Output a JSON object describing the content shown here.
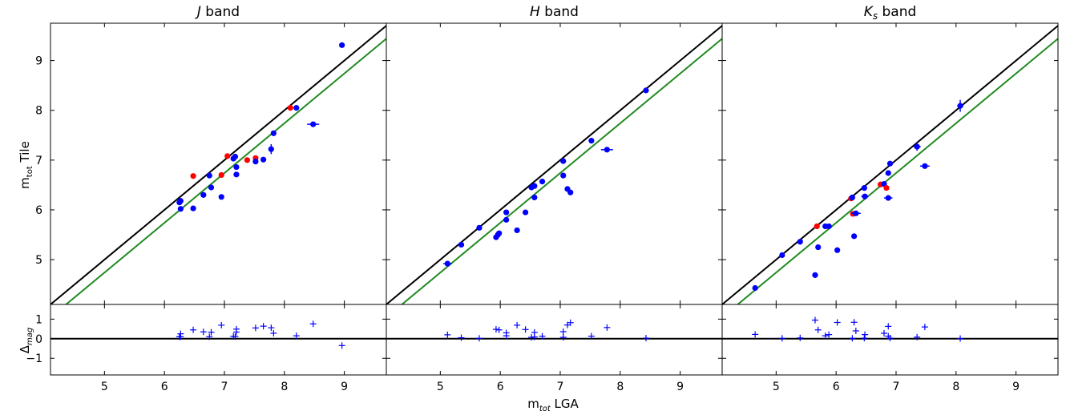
{
  "figure": {
    "ylabel": "m",
    "ylabel_sub": "tot",
    "ylabel_tail": " Tile",
    "xlabel": "m",
    "xlabel_sub": "tot",
    "xlabel_tail": " LGA",
    "resid_ylabel": "Δ",
    "resid_ylabel_sub": "mag"
  },
  "colors": {
    "identity_line": "#000000",
    "offset_line": "#228B22",
    "points_blue": "#0000ff",
    "points_red": "#ff0000"
  },
  "chart_data": [
    {
      "type": "scatter",
      "title_prefix": "",
      "title_symbol": "J",
      "title_sub": "",
      "title_suffix": " band",
      "xlim": [
        4.1,
        9.7
      ],
      "ylim": [
        4.1,
        9.75
      ],
      "resid_ylim": [
        -1.85,
        1.75
      ],
      "x_ticks": [
        5,
        6,
        7,
        8,
        9
      ],
      "y_ticks": [
        5,
        6,
        7,
        8,
        9
      ],
      "resid_ticks": [
        -1,
        0,
        1
      ],
      "lines": [
        {
          "name": "identity",
          "x": [
            4.1,
            9.7
          ],
          "y": [
            4.1,
            9.7
          ]
        },
        {
          "name": "offset",
          "x": [
            4.1,
            9.7
          ],
          "y": [
            3.84,
            9.44
          ]
        }
      ],
      "points": [
        {
          "x": 6.25,
          "y": 6.15,
          "c": "blue"
        },
        {
          "x": 6.27,
          "y": 6.18,
          "c": "blue"
        },
        {
          "x": 6.27,
          "y": 6.02,
          "c": "blue"
        },
        {
          "x": 6.48,
          "y": 6.03,
          "c": "blue"
        },
        {
          "x": 6.48,
          "y": 6.68,
          "c": "red"
        },
        {
          "x": 6.65,
          "y": 6.3,
          "c": "blue"
        },
        {
          "x": 6.75,
          "y": 6.69,
          "c": "blue"
        },
        {
          "x": 6.78,
          "y": 6.45,
          "c": "blue"
        },
        {
          "x": 6.95,
          "y": 6.26,
          "c": "blue"
        },
        {
          "x": 6.95,
          "y": 6.7,
          "c": "red"
        },
        {
          "x": 7.05,
          "y": 7.08,
          "c": "red"
        },
        {
          "x": 7.15,
          "y": 7.03,
          "c": "blue"
        },
        {
          "x": 7.18,
          "y": 7.07,
          "c": "blue"
        },
        {
          "x": 7.2,
          "y": 6.86,
          "c": "blue"
        },
        {
          "x": 7.2,
          "y": 6.71,
          "c": "blue"
        },
        {
          "x": 7.38,
          "y": 7.0,
          "c": "red"
        },
        {
          "x": 7.52,
          "y": 7.04,
          "c": "red"
        },
        {
          "x": 7.52,
          "y": 6.97,
          "c": "blue"
        },
        {
          "x": 7.65,
          "y": 7.01,
          "c": "blue"
        },
        {
          "x": 7.78,
          "y": 7.22,
          "c": "blue",
          "yerr": 0.1
        },
        {
          "x": 7.82,
          "y": 7.54,
          "c": "blue"
        },
        {
          "x": 8.1,
          "y": 8.05,
          "c": "red"
        },
        {
          "x": 8.2,
          "y": 8.05,
          "c": "blue"
        },
        {
          "x": 8.48,
          "y": 7.72,
          "c": "blue",
          "xerr": 0.1
        },
        {
          "x": 8.96,
          "y": 9.31,
          "c": "blue"
        }
      ],
      "residuals": [
        {
          "x": 6.25,
          "y": 0.1
        },
        {
          "x": 6.27,
          "y": 0.1
        },
        {
          "x": 6.27,
          "y": 0.25
        },
        {
          "x": 6.48,
          "y": 0.45
        },
        {
          "x": 6.65,
          "y": 0.35
        },
        {
          "x": 6.75,
          "y": 0.1
        },
        {
          "x": 6.78,
          "y": 0.33
        },
        {
          "x": 6.95,
          "y": 0.69
        },
        {
          "x": 7.15,
          "y": 0.12
        },
        {
          "x": 7.18,
          "y": 0.11
        },
        {
          "x": 7.2,
          "y": 0.34
        },
        {
          "x": 7.2,
          "y": 0.49
        },
        {
          "x": 7.52,
          "y": 0.55
        },
        {
          "x": 7.65,
          "y": 0.64
        },
        {
          "x": 7.78,
          "y": 0.56
        },
        {
          "x": 7.82,
          "y": 0.28
        },
        {
          "x": 8.2,
          "y": 0.15
        },
        {
          "x": 8.48,
          "y": 0.76
        },
        {
          "x": 8.96,
          "y": -0.35
        }
      ]
    },
    {
      "type": "scatter",
      "title_prefix": "",
      "title_symbol": "H",
      "title_sub": "",
      "title_suffix": " band",
      "xlim": [
        4.1,
        9.7
      ],
      "ylim": [
        4.1,
        9.75
      ],
      "resid_ylim": [
        -1.85,
        1.75
      ],
      "x_ticks": [
        5,
        6,
        7,
        8,
        9
      ],
      "y_ticks": [
        5,
        6,
        7,
        8,
        9
      ],
      "resid_ticks": [
        -1,
        0,
        1
      ],
      "lines": [
        {
          "name": "identity",
          "x": [
            4.1,
            9.7
          ],
          "y": [
            4.1,
            9.7
          ]
        },
        {
          "name": "offset",
          "x": [
            4.1,
            9.7
          ],
          "y": [
            3.84,
            9.44
          ]
        }
      ],
      "points": [
        {
          "x": 5.12,
          "y": 4.92,
          "c": "blue",
          "xerr": 0.07
        },
        {
          "x": 5.35,
          "y": 5.3,
          "c": "blue"
        },
        {
          "x": 5.65,
          "y": 5.64,
          "c": "blue"
        },
        {
          "x": 5.93,
          "y": 5.45,
          "c": "blue"
        },
        {
          "x": 5.96,
          "y": 5.5,
          "c": "blue"
        },
        {
          "x": 5.98,
          "y": 5.53,
          "c": "blue"
        },
        {
          "x": 6.1,
          "y": 5.8,
          "c": "blue"
        },
        {
          "x": 6.1,
          "y": 5.95,
          "c": "blue"
        },
        {
          "x": 6.28,
          "y": 5.59,
          "c": "blue"
        },
        {
          "x": 6.42,
          "y": 5.95,
          "c": "blue"
        },
        {
          "x": 6.52,
          "y": 6.45,
          "c": "blue"
        },
        {
          "x": 6.57,
          "y": 6.48,
          "c": "blue"
        },
        {
          "x": 6.57,
          "y": 6.25,
          "c": "blue"
        },
        {
          "x": 6.7,
          "y": 6.57,
          "c": "blue"
        },
        {
          "x": 7.05,
          "y": 6.98,
          "c": "blue"
        },
        {
          "x": 7.05,
          "y": 6.69,
          "c": "blue"
        },
        {
          "x": 7.12,
          "y": 6.42,
          "c": "blue"
        },
        {
          "x": 7.17,
          "y": 6.35,
          "c": "blue"
        },
        {
          "x": 7.52,
          "y": 7.39,
          "c": "blue"
        },
        {
          "x": 7.78,
          "y": 7.21,
          "c": "blue",
          "xerr": 0.1
        },
        {
          "x": 8.43,
          "y": 8.4,
          "c": "blue"
        }
      ],
      "residuals": [
        {
          "x": 5.12,
          "y": 0.2
        },
        {
          "x": 5.35,
          "y": 0.05
        },
        {
          "x": 5.65,
          "y": 0.02
        },
        {
          "x": 5.93,
          "y": 0.48
        },
        {
          "x": 5.98,
          "y": 0.45
        },
        {
          "x": 6.1,
          "y": 0.15
        },
        {
          "x": 6.1,
          "y": 0.3
        },
        {
          "x": 6.28,
          "y": 0.69
        },
        {
          "x": 6.42,
          "y": 0.47
        },
        {
          "x": 6.52,
          "y": 0.07
        },
        {
          "x": 6.57,
          "y": 0.32
        },
        {
          "x": 6.57,
          "y": 0.09
        },
        {
          "x": 6.7,
          "y": 0.13
        },
        {
          "x": 7.05,
          "y": 0.07
        },
        {
          "x": 7.05,
          "y": 0.36
        },
        {
          "x": 7.12,
          "y": 0.7
        },
        {
          "x": 7.17,
          "y": 0.82
        },
        {
          "x": 7.52,
          "y": 0.13
        },
        {
          "x": 7.78,
          "y": 0.57
        },
        {
          "x": 8.43,
          "y": 0.03
        }
      ]
    },
    {
      "type": "scatter",
      "title_prefix": "",
      "title_symbol": "K",
      "title_sub": "s",
      "title_suffix": " band",
      "xlim": [
        4.1,
        9.7
      ],
      "ylim": [
        4.1,
        9.75
      ],
      "resid_ylim": [
        -1.85,
        1.75
      ],
      "x_ticks": [
        5,
        6,
        7,
        8,
        9
      ],
      "y_ticks": [
        5,
        6,
        7,
        8,
        9
      ],
      "resid_ticks": [
        -1,
        0,
        1
      ],
      "lines": [
        {
          "name": "identity",
          "x": [
            4.1,
            9.7
          ],
          "y": [
            4.1,
            9.7
          ]
        },
        {
          "name": "offset",
          "x": [
            4.1,
            9.7
          ],
          "y": [
            3.84,
            9.44
          ]
        }
      ],
      "points": [
        {
          "x": 4.65,
          "y": 4.43,
          "c": "blue"
        },
        {
          "x": 5.1,
          "y": 5.09,
          "c": "blue"
        },
        {
          "x": 5.4,
          "y": 5.36,
          "c": "blue"
        },
        {
          "x": 5.65,
          "y": 4.69,
          "c": "blue"
        },
        {
          "x": 5.68,
          "y": 5.67,
          "c": "red"
        },
        {
          "x": 5.7,
          "y": 5.25,
          "c": "blue"
        },
        {
          "x": 5.82,
          "y": 5.67,
          "c": "blue"
        },
        {
          "x": 5.88,
          "y": 5.67,
          "c": "blue"
        },
        {
          "x": 6.02,
          "y": 5.19,
          "c": "blue"
        },
        {
          "x": 6.25,
          "y": 6.23,
          "c": "red"
        },
        {
          "x": 6.27,
          "y": 6.25,
          "c": "blue"
        },
        {
          "x": 6.28,
          "y": 5.92,
          "c": "red"
        },
        {
          "x": 6.3,
          "y": 5.47,
          "c": "blue"
        },
        {
          "x": 6.33,
          "y": 5.93,
          "c": "blue",
          "xerr": 0.08
        },
        {
          "x": 6.47,
          "y": 6.44,
          "c": "blue"
        },
        {
          "x": 6.48,
          "y": 6.27,
          "c": "blue",
          "xerr": 0.06
        },
        {
          "x": 6.74,
          "y": 6.51,
          "c": "red"
        },
        {
          "x": 6.8,
          "y": 6.52,
          "c": "blue"
        },
        {
          "x": 6.84,
          "y": 6.44,
          "c": "red"
        },
        {
          "x": 6.87,
          "y": 6.74,
          "c": "blue"
        },
        {
          "x": 6.87,
          "y": 6.24,
          "c": "blue",
          "xerr": 0.07
        },
        {
          "x": 6.9,
          "y": 6.93,
          "c": "blue"
        },
        {
          "x": 7.35,
          "y": 7.27,
          "c": "blue",
          "xerr": 0.06,
          "yerr": 0.08
        },
        {
          "x": 7.48,
          "y": 6.88,
          "c": "blue",
          "xerr": 0.08
        },
        {
          "x": 8.07,
          "y": 8.09,
          "c": "blue",
          "xerr": 0.05,
          "yerr": 0.12
        }
      ],
      "residuals": [
        {
          "x": 4.65,
          "y": 0.22
        },
        {
          "x": 5.1,
          "y": 0.02
        },
        {
          "x": 5.4,
          "y": 0.04
        },
        {
          "x": 5.65,
          "y": 0.95
        },
        {
          "x": 5.7,
          "y": 0.45
        },
        {
          "x": 5.82,
          "y": 0.15
        },
        {
          "x": 5.88,
          "y": 0.21
        },
        {
          "x": 6.02,
          "y": 0.83
        },
        {
          "x": 6.27,
          "y": 0.02
        },
        {
          "x": 6.3,
          "y": 0.84
        },
        {
          "x": 6.33,
          "y": 0.4
        },
        {
          "x": 6.47,
          "y": 0.03
        },
        {
          "x": 6.48,
          "y": 0.21
        },
        {
          "x": 6.8,
          "y": 0.28
        },
        {
          "x": 6.87,
          "y": 0.13
        },
        {
          "x": 6.87,
          "y": 0.63
        },
        {
          "x": 6.9,
          "y": 0.03
        },
        {
          "x": 7.35,
          "y": 0.08
        },
        {
          "x": 7.48,
          "y": 0.6
        },
        {
          "x": 8.07,
          "y": 0.01
        }
      ]
    }
  ]
}
